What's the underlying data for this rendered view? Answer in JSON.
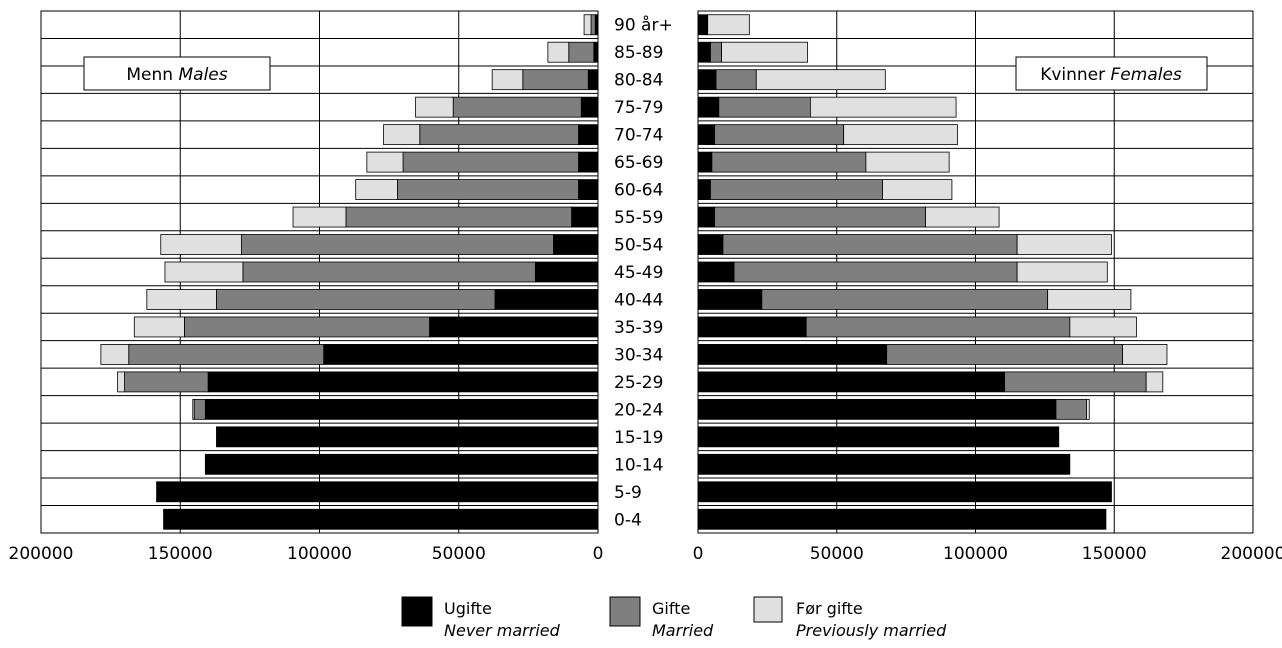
{
  "chart_data": {
    "type": "bar",
    "orientation": "horizontal",
    "layout": "population-pyramid",
    "categories": [
      "0-4",
      "5-9",
      "10-14",
      "15-19",
      "20-24",
      "25-29",
      "30-34",
      "35-39",
      "40-44",
      "45-49",
      "50-54",
      "55-59",
      "60-64",
      "65-69",
      "70-74",
      "75-79",
      "80-84",
      "85-89",
      "90 år+"
    ],
    "xlim": [
      0,
      200000
    ],
    "x_ticks": [
      200000,
      150000,
      100000,
      50000,
      0
    ],
    "grid": true,
    "stacked": true,
    "panels": [
      {
        "side": "left",
        "label_main": "Menn",
        "label_sub": "Males",
        "series": [
          {
            "name": "Ugifte",
            "values": [
              156000,
              158500,
              141000,
              137000,
              141000,
              140000,
              98500,
              60500,
              37000,
              22500,
              16000,
              9500,
              7000,
              7000,
              7000,
              6000,
              3500,
              1500,
              1000
            ]
          },
          {
            "name": "Gifte",
            "values": [
              0,
              0,
              0,
              0,
              4000,
              30000,
              70000,
              88000,
              100000,
              105000,
              112000,
              81000,
              65000,
              63000,
              57000,
              46000,
              23500,
              9000,
              1500
            ]
          },
          {
            "name": "Før gifte",
            "values": [
              0,
              0,
              0,
              0,
              500,
              2500,
              10000,
              18000,
              25000,
              28000,
              29000,
              19000,
              15000,
              13000,
              13000,
              13500,
              11000,
              7500,
              2500
            ]
          }
        ]
      },
      {
        "side": "right",
        "label_main": "Kvinner",
        "label_sub": "Females",
        "series": [
          {
            "name": "Ugifte",
            "values": [
              147000,
              149000,
              134000,
              130000,
              129000,
              110500,
              68000,
              39000,
              23000,
              13000,
              9000,
              6000,
              4500,
              5000,
              6000,
              7500,
              6500,
              4500,
              3500
            ]
          },
          {
            "name": "Gifte",
            "values": [
              0,
              0,
              0,
              0,
              11000,
              51000,
              85000,
              95000,
              103000,
              102000,
              106000,
              76000,
              62000,
              55500,
              46500,
              33000,
              14500,
              4000,
              0
            ]
          },
          {
            "name": "Før gifte",
            "values": [
              0,
              0,
              0,
              0,
              1000,
              6000,
              16000,
              24000,
              30000,
              32500,
              34000,
              26500,
              25000,
              30000,
              41000,
              52500,
              46500,
              31000,
              15000
            ]
          }
        ]
      }
    ],
    "legend": {
      "placement": "bottom",
      "entries": [
        {
          "name": "Ugifte",
          "sub": "Never married",
          "color": "#000000"
        },
        {
          "name": "Gifte",
          "sub": "Married",
          "color": "#7f7f7f"
        },
        {
          "name": "Før gifte",
          "sub": "Previously married",
          "color": "#e0e0e0"
        }
      ]
    }
  }
}
